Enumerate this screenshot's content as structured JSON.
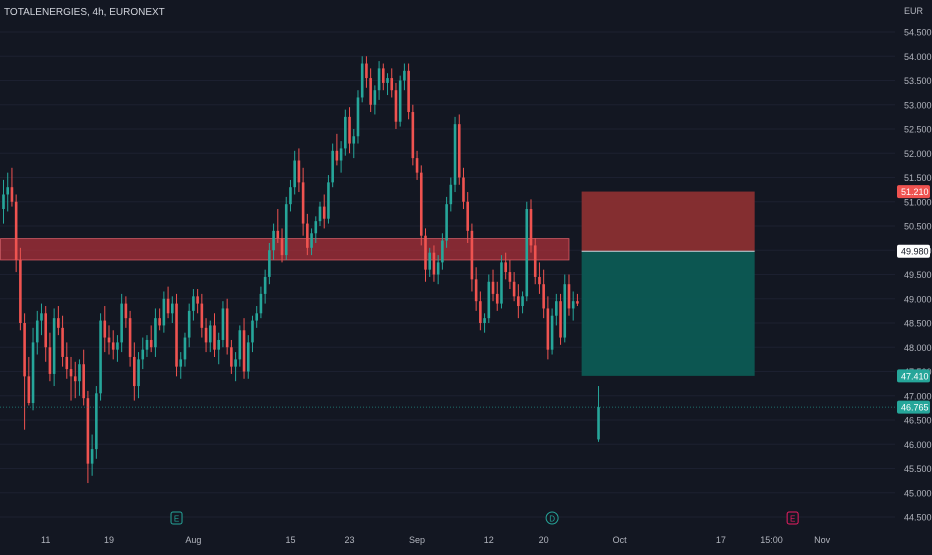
{
  "header": {
    "symbol_title": "TOTALENERGIES, 4h, EURONEXT",
    "currency": "EUR"
  },
  "colors": {
    "background": "#131722",
    "up": "#26a69a",
    "down": "#ef5350",
    "axis_text": "#b2b5be",
    "stop_zone": "#8a2f31",
    "target_zone": "#0c5a54",
    "supply_zone": "#b0313a"
  },
  "chart_data": {
    "type": "candlestick",
    "ylim": [
      44.35,
      54.95
    ],
    "y_ticks": [
      54.5,
      54.0,
      53.5,
      53.0,
      52.5,
      52.0,
      51.5,
      51.0,
      50.5,
      50.0,
      49.5,
      49.0,
      48.5,
      48.0,
      47.5,
      47.0,
      46.5,
      46.0,
      45.5,
      45.0,
      44.5
    ],
    "y_tick_labels": [
      "54.500",
      "54.000",
      "53.500",
      "53.000",
      "52.500",
      "52.000",
      "51.500",
      "51.000",
      "50.500",
      "50.000",
      "49.500",
      "49.000",
      "48.500",
      "48.000",
      "47.500",
      "47.000",
      "46.500",
      "46.000",
      "45.500",
      "45.000",
      "44.500"
    ],
    "x_ticks": [
      {
        "label": "11",
        "bar": 10
      },
      {
        "label": "19",
        "bar": 25
      },
      {
        "label": "Aug",
        "bar": 45
      },
      {
        "label": "15",
        "bar": 68
      },
      {
        "label": "23",
        "bar": 82
      },
      {
        "label": "Sep",
        "bar": 98
      },
      {
        "label": "12",
        "bar": 115
      },
      {
        "label": "20",
        "bar": 128
      },
      {
        "label": "Oct",
        "bar": 146
      },
      {
        "label": "17",
        "bar": 170
      },
      {
        "label": "15:00",
        "bar": 182
      },
      {
        "label": "Nov",
        "bar": 194
      }
    ],
    "event_markers": [
      {
        "label": "E",
        "bar": 41,
        "color": "#26a69a"
      },
      {
        "label": "D",
        "bar": 130,
        "color": "#26a69a"
      },
      {
        "label": "E",
        "bar": 187,
        "color": "#e91e63"
      }
    ],
    "price_labels": [
      {
        "text": "51.210",
        "value": 51.21,
        "kind": "stop"
      },
      {
        "text": "49.980",
        "value": 49.98,
        "kind": "entry"
      },
      {
        "text": "47.410",
        "value": 47.41,
        "kind": "target"
      },
      {
        "text": "46.765",
        "value": 46.765,
        "kind": "last"
      }
    ],
    "supply_zone": {
      "from_bar": 0,
      "to_bar": 134,
      "top": 50.24,
      "bottom": 49.8
    },
    "position": {
      "from_bar": 137,
      "to_bar": 178,
      "stop": 51.21,
      "entry": 49.98,
      "target": 47.41
    },
    "last_price": 46.765,
    "ohlc": [
      [
        50.85,
        51.45,
        50.55,
        51.15
      ],
      [
        51.15,
        51.6,
        50.8,
        51.3
      ],
      [
        51.3,
        51.7,
        50.9,
        51.0
      ],
      [
        51.0,
        51.15,
        49.55,
        49.8
      ],
      [
        49.8,
        50.05,
        48.35,
        48.5
      ],
      [
        48.5,
        48.7,
        46.3,
        47.4
      ],
      [
        47.4,
        47.8,
        46.8,
        46.85
      ],
      [
        46.85,
        48.4,
        46.7,
        48.1
      ],
      [
        48.1,
        48.75,
        47.85,
        48.55
      ],
      [
        48.55,
        48.9,
        48.25,
        48.7
      ],
      [
        48.7,
        48.85,
        47.7,
        48.0
      ],
      [
        48.0,
        48.3,
        47.3,
        47.45
      ],
      [
        47.45,
        48.8,
        47.2,
        48.6
      ],
      [
        48.6,
        48.85,
        48.25,
        48.4
      ],
      [
        48.4,
        48.65,
        47.6,
        47.8
      ],
      [
        47.8,
        48.1,
        47.35,
        47.55
      ],
      [
        47.55,
        47.8,
        46.9,
        47.4
      ],
      [
        47.4,
        47.7,
        46.95,
        47.3
      ],
      [
        47.3,
        47.75,
        47.0,
        47.65
      ],
      [
        47.65,
        47.95,
        46.8,
        46.95
      ],
      [
        46.95,
        47.1,
        45.2,
        45.6
      ],
      [
        45.6,
        46.2,
        45.35,
        45.9
      ],
      [
        45.9,
        47.2,
        45.7,
        47.05
      ],
      [
        47.05,
        48.7,
        46.9,
        48.55
      ],
      [
        48.55,
        48.85,
        47.9,
        48.2
      ],
      [
        48.2,
        48.45,
        47.85,
        48.1
      ],
      [
        48.1,
        48.35,
        47.75,
        47.95
      ],
      [
        47.95,
        48.25,
        47.7,
        48.1
      ],
      [
        48.1,
        49.1,
        47.9,
        48.9
      ],
      [
        48.9,
        49.05,
        48.4,
        48.6
      ],
      [
        48.6,
        48.75,
        47.6,
        47.8
      ],
      [
        47.8,
        48.1,
        46.9,
        47.2
      ],
      [
        47.2,
        47.9,
        46.95,
        47.75
      ],
      [
        47.75,
        48.2,
        47.55,
        47.95
      ],
      [
        47.95,
        48.25,
        47.8,
        48.15
      ],
      [
        48.15,
        48.45,
        47.9,
        48.0
      ],
      [
        48.0,
        48.8,
        47.8,
        48.6
      ],
      [
        48.6,
        48.8,
        48.35,
        48.45
      ],
      [
        48.45,
        49.15,
        48.3,
        49.0
      ],
      [
        49.0,
        49.25,
        48.6,
        48.7
      ],
      [
        48.7,
        49.05,
        48.5,
        48.9
      ],
      [
        48.9,
        49.1,
        47.4,
        47.6
      ],
      [
        47.6,
        47.9,
        47.35,
        47.75
      ],
      [
        47.75,
        48.3,
        47.6,
        48.2
      ],
      [
        48.2,
        48.9,
        48.0,
        48.75
      ],
      [
        48.75,
        49.2,
        48.55,
        49.05
      ],
      [
        49.05,
        49.2,
        48.7,
        48.9
      ],
      [
        48.9,
        49.1,
        48.2,
        48.4
      ],
      [
        48.4,
        48.6,
        47.9,
        48.1
      ],
      [
        48.1,
        48.55,
        47.9,
        48.45
      ],
      [
        48.45,
        48.7,
        47.8,
        47.95
      ],
      [
        47.95,
        48.3,
        47.65,
        48.15
      ],
      [
        48.15,
        48.95,
        48.0,
        48.8
      ],
      [
        48.8,
        49.0,
        47.85,
        48.0
      ],
      [
        48.0,
        48.15,
        47.45,
        47.6
      ],
      [
        47.6,
        47.9,
        47.3,
        47.75
      ],
      [
        47.75,
        48.45,
        47.6,
        48.35
      ],
      [
        48.35,
        48.6,
        47.35,
        47.5
      ],
      [
        47.5,
        48.25,
        47.35,
        48.1
      ],
      [
        48.1,
        48.65,
        47.9,
        48.55
      ],
      [
        48.55,
        48.85,
        48.4,
        48.7
      ],
      [
        48.7,
        49.25,
        48.6,
        49.1
      ],
      [
        49.1,
        49.6,
        48.9,
        49.45
      ],
      [
        49.45,
        50.15,
        49.3,
        50.0
      ],
      [
        50.0,
        50.55,
        49.8,
        50.4
      ],
      [
        50.4,
        50.85,
        50.15,
        50.25
      ],
      [
        50.25,
        50.45,
        49.75,
        49.9
      ],
      [
        49.9,
        51.1,
        49.8,
        50.95
      ],
      [
        50.95,
        51.45,
        50.8,
        51.3
      ],
      [
        51.3,
        52.05,
        51.15,
        51.85
      ],
      [
        51.85,
        52.1,
        51.2,
        51.4
      ],
      [
        51.4,
        51.7,
        50.3,
        50.55
      ],
      [
        50.55,
        50.75,
        49.9,
        50.05
      ],
      [
        50.05,
        50.45,
        49.9,
        50.35
      ],
      [
        50.35,
        50.7,
        50.15,
        50.6
      ],
      [
        50.6,
        51.0,
        50.5,
        50.9
      ],
      [
        50.9,
        51.15,
        50.45,
        50.65
      ],
      [
        50.65,
        51.55,
        50.55,
        51.4
      ],
      [
        51.4,
        52.2,
        51.3,
        52.05
      ],
      [
        52.05,
        52.4,
        51.75,
        51.85
      ],
      [
        51.85,
        52.25,
        51.6,
        52.1
      ],
      [
        52.1,
        52.9,
        51.95,
        52.75
      ],
      [
        52.75,
        52.95,
        52.0,
        52.2
      ],
      [
        52.2,
        52.5,
        51.9,
        52.35
      ],
      [
        52.35,
        53.3,
        52.2,
        53.15
      ],
      [
        53.15,
        54.0,
        53.05,
        53.85
      ],
      [
        53.85,
        54.0,
        53.35,
        53.55
      ],
      [
        53.55,
        53.75,
        52.85,
        53.0
      ],
      [
        53.0,
        53.4,
        52.8,
        53.3
      ],
      [
        53.3,
        53.9,
        53.1,
        53.75
      ],
      [
        53.75,
        53.85,
        53.3,
        53.45
      ],
      [
        53.45,
        53.65,
        53.2,
        53.55
      ],
      [
        53.55,
        53.75,
        53.15,
        53.3
      ],
      [
        53.3,
        53.45,
        52.5,
        52.65
      ],
      [
        52.65,
        53.6,
        52.55,
        53.5
      ],
      [
        53.5,
        53.85,
        53.3,
        53.7
      ],
      [
        53.7,
        53.85,
        52.7,
        52.85
      ],
      [
        52.85,
        53.0,
        51.75,
        51.9
      ],
      [
        51.9,
        52.05,
        51.45,
        51.6
      ],
      [
        51.6,
        51.75,
        50.1,
        50.3
      ],
      [
        50.3,
        50.45,
        49.35,
        49.6
      ],
      [
        49.6,
        50.05,
        49.45,
        49.95
      ],
      [
        49.95,
        50.1,
        49.35,
        49.5
      ],
      [
        49.5,
        49.9,
        49.3,
        49.75
      ],
      [
        49.75,
        50.35,
        49.6,
        50.2
      ],
      [
        50.2,
        51.1,
        50.05,
        50.95
      ],
      [
        50.95,
        51.5,
        50.8,
        51.35
      ],
      [
        51.35,
        52.75,
        51.2,
        52.6
      ],
      [
        52.6,
        52.8,
        51.35,
        51.5
      ],
      [
        51.5,
        51.7,
        50.85,
        51.0
      ],
      [
        51.0,
        51.2,
        50.15,
        50.4
      ],
      [
        50.4,
        50.55,
        49.15,
        49.4
      ],
      [
        49.4,
        49.65,
        48.75,
        48.95
      ],
      [
        48.95,
        49.15,
        48.35,
        48.5
      ],
      [
        48.5,
        48.7,
        48.3,
        48.6
      ],
      [
        48.6,
        49.5,
        48.5,
        49.35
      ],
      [
        49.35,
        49.6,
        48.95,
        49.1
      ],
      [
        49.1,
        49.35,
        48.75,
        48.9
      ],
      [
        48.9,
        49.9,
        48.8,
        49.75
      ],
      [
        49.75,
        49.95,
        49.4,
        49.55
      ],
      [
        49.55,
        49.8,
        49.2,
        49.35
      ],
      [
        49.35,
        49.55,
        48.95,
        49.05
      ],
      [
        49.05,
        49.3,
        48.6,
        48.85
      ],
      [
        48.85,
        49.15,
        48.7,
        49.05
      ],
      [
        49.05,
        51.0,
        48.95,
        50.85
      ],
      [
        50.85,
        51.05,
        49.95,
        50.1
      ],
      [
        50.1,
        50.25,
        49.3,
        49.45
      ],
      [
        49.45,
        49.75,
        49.1,
        49.3
      ],
      [
        49.3,
        49.6,
        48.6,
        48.8
      ],
      [
        48.8,
        49.05,
        47.75,
        47.95
      ],
      [
        47.95,
        48.8,
        47.85,
        48.65
      ],
      [
        48.65,
        49.1,
        48.45,
        48.95
      ],
      [
        48.95,
        49.1,
        48.05,
        48.2
      ],
      [
        48.2,
        49.5,
        48.1,
        49.3
      ],
      [
        49.3,
        49.5,
        48.65,
        48.8
      ],
      [
        48.8,
        49.15,
        48.55,
        48.95
      ],
      [
        48.95,
        49.1,
        48.85,
        48.9
      ],
      null,
      null,
      null,
      null,
      [
        46.1,
        47.2,
        46.05,
        46.765
      ]
    ]
  }
}
